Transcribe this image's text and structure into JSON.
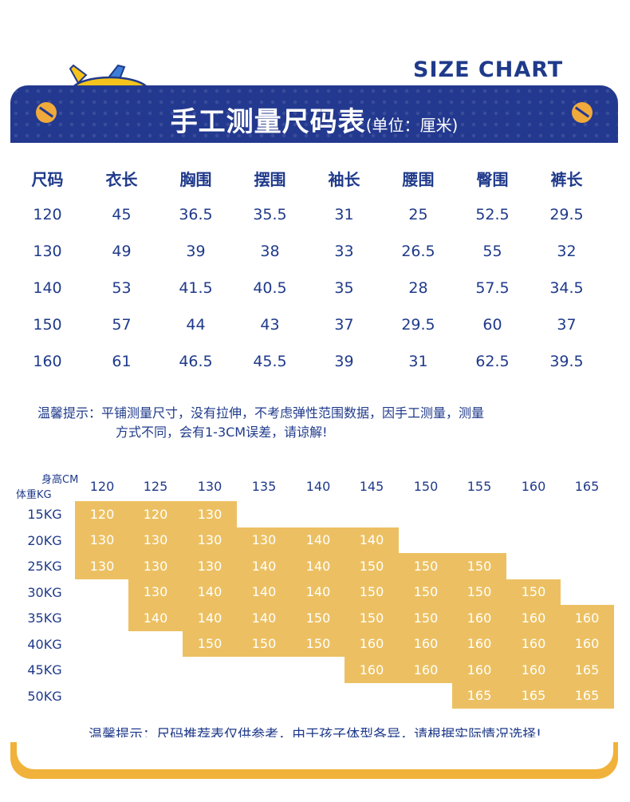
{
  "header": {
    "size_chart_label": "SIZE CHART",
    "banner_title": "手工测量尺码表",
    "banner_unit": "(单位：厘米)"
  },
  "size_table": {
    "columns": [
      "尺码",
      "衣长",
      "胸围",
      "摆围",
      "袖长",
      "腰围",
      "臀围",
      "裤长"
    ],
    "rows": [
      [
        "120",
        "45",
        "36.5",
        "35.5",
        "31",
        "25",
        "52.5",
        "29.5"
      ],
      [
        "130",
        "49",
        "39",
        "38",
        "33",
        "26.5",
        "55",
        "32"
      ],
      [
        "140",
        "53",
        "41.5",
        "40.5",
        "35",
        "28",
        "57.5",
        "34.5"
      ],
      [
        "150",
        "57",
        "44",
        "43",
        "37",
        "29.5",
        "60",
        "37"
      ],
      [
        "160",
        "61",
        "46.5",
        "45.5",
        "39",
        "31",
        "62.5",
        "39.5"
      ]
    ]
  },
  "tip": {
    "label": "温馨提示：",
    "line1": "平铺测量尺寸，没有拉伸，不考虑弹性范围数据，因手工测量，测量",
    "line2": "方式不同，会有1-3CM误差，请谅解!"
  },
  "recommend": {
    "height_label": "身高CM",
    "weight_label": "体重KG",
    "heights": [
      "120",
      "125",
      "130",
      "135",
      "140",
      "145",
      "150",
      "155",
      "160",
      "165"
    ],
    "rows": [
      {
        "weight": "15KG",
        "cells": [
          "120",
          "120",
          "130",
          "",
          "",
          "",
          "",
          "",
          "",
          ""
        ]
      },
      {
        "weight": "20KG",
        "cells": [
          "130",
          "130",
          "130",
          "130",
          "140",
          "140",
          "",
          "",
          "",
          ""
        ]
      },
      {
        "weight": "25KG",
        "cells": [
          "130",
          "130",
          "130",
          "140",
          "140",
          "150",
          "150",
          "150",
          "",
          ""
        ]
      },
      {
        "weight": "30KG",
        "cells": [
          "",
          "130",
          "140",
          "140",
          "140",
          "150",
          "150",
          "150",
          "150",
          ""
        ]
      },
      {
        "weight": "35KG",
        "cells": [
          "",
          "140",
          "140",
          "140",
          "150",
          "150",
          "150",
          "160",
          "160",
          "160"
        ]
      },
      {
        "weight": "40KG",
        "cells": [
          "",
          "",
          "150",
          "150",
          "150",
          "160",
          "160",
          "160",
          "160",
          "160"
        ]
      },
      {
        "weight": "45KG",
        "cells": [
          "",
          "",
          "",
          "",
          "",
          "160",
          "160",
          "160",
          "160",
          "165"
        ]
      },
      {
        "weight": "50KG",
        "cells": [
          "",
          "",
          "",
          "",
          "",
          "",
          "",
          "165",
          "165",
          "165"
        ]
      }
    ]
  },
  "tip2": "温馨提示：尺码推荐表仅供参考，由于孩子体型各异，请根据实际情况选择!",
  "colors": {
    "navy": "#23398f",
    "text_blue": "#1f3a8a",
    "gold": "#ecc062",
    "orange": "#f0b23a"
  }
}
